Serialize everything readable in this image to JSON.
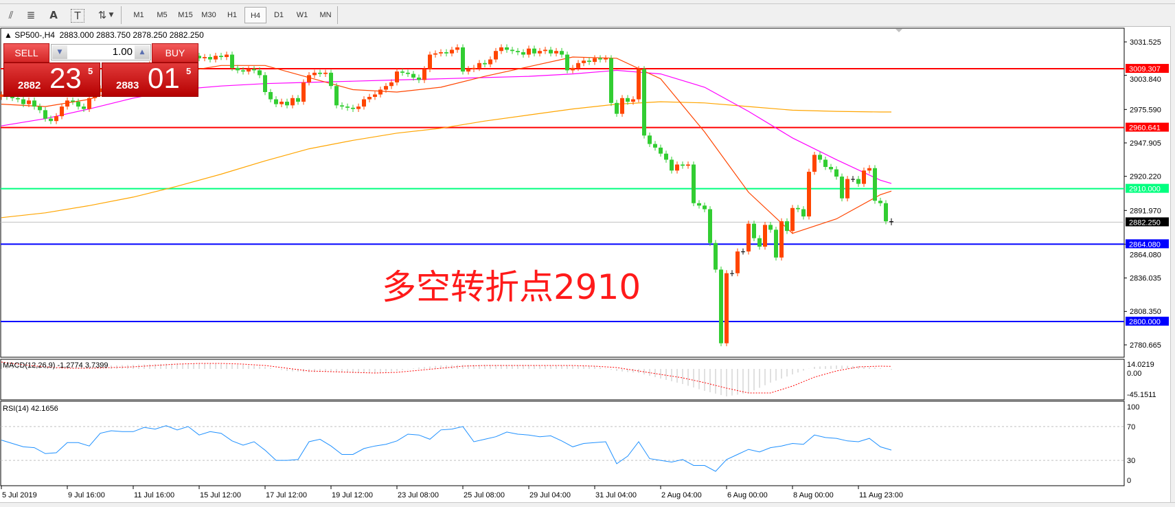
{
  "toolbar": {
    "tools": [
      {
        "name": "elliott-wave-icon",
        "glyph": "⫽"
      },
      {
        "name": "fibonacci-icon",
        "glyph": "≣"
      },
      {
        "name": "text-icon",
        "glyph": "A"
      },
      {
        "name": "text-label-icon",
        "glyph": "T"
      },
      {
        "name": "arrows-icon",
        "glyph": "⇅"
      }
    ],
    "periods": [
      "M1",
      "M5",
      "M15",
      "M30",
      "H1",
      "H4",
      "D1",
      "W1",
      "MN"
    ],
    "active_period": "H4"
  },
  "chart_header": {
    "symbol": "SP500-,H4",
    "ohlc": "2883.000 2883.750 2878.250 2882.250"
  },
  "trade_panel": {
    "sell_label": "SELL",
    "buy_label": "BUY",
    "lot": "1.00",
    "sell_price": {
      "prefix": "2882",
      "big": "23",
      "sup": "5"
    },
    "buy_price": {
      "prefix": "2883",
      "big": "01",
      "sup": "5"
    }
  },
  "annotation": "多空转折点2910",
  "colors": {
    "bull_candle": "#ff4500",
    "bear_candle": "#32cd32",
    "ma_fast": "#ff4500",
    "ma_mid": "#ff00ff",
    "ma_slow": "#ffa500",
    "resistance": "#ff0000",
    "pivot": "#00ff7f",
    "support": "#0000ff",
    "bid_line": "#c0c0c0",
    "rsi": "#1e90ff",
    "macd_hist": "#c0c0c0",
    "macd_signal": "#ff0000"
  },
  "chart_data": [
    {
      "type": "candlestick",
      "symbol": "SP500-",
      "timeframe": "H4",
      "ylim": [
        2773,
        3048
      ],
      "y_ticks": [
        "3031.525",
        "3003.840",
        "2975.590",
        "2947.905",
        "2920.220",
        "2891.970",
        "2864.080",
        "2836.035",
        "2808.350",
        "2780.665"
      ],
      "x_ticks": [
        {
          "label": "5 Jul 2019",
          "bar": 0
        },
        {
          "label": "9 Jul 16:00",
          "bar": 12
        },
        {
          "label": "11 Jul 16:00",
          "bar": 24
        },
        {
          "label": "15 Jul 12:00",
          "bar": 36
        },
        {
          "label": "17 Jul 12:00",
          "bar": 48
        },
        {
          "label": "19 Jul 12:00",
          "bar": 60
        },
        {
          "label": "23 Jul 08:00",
          "bar": 72
        },
        {
          "label": "25 Jul 08:00",
          "bar": 84
        },
        {
          "label": "29 Jul 04:00",
          "bar": 96
        },
        {
          "label": "31 Jul 04:00",
          "bar": 108
        },
        {
          "label": "2 Aug 04:00",
          "bar": 120
        },
        {
          "label": "6 Aug 00:00",
          "bar": 132
        },
        {
          "label": "8 Aug 00:00",
          "bar": 144
        },
        {
          "label": "11 Aug 23:00",
          "bar": 156
        }
      ],
      "first_open": 2986,
      "closes": [
        2988,
        2986,
        2985,
        2984,
        2980,
        2983,
        2978,
        2975,
        2968,
        2966,
        2970,
        2978,
        2983,
        2982,
        2978,
        2976,
        2985,
        2990,
        2993,
        2996,
        3000,
        3003,
        3006,
        3008,
        3010,
        3012,
        3010,
        3013,
        3015,
        3017,
        3015,
        3018,
        3016,
        3019,
        3018,
        3020,
        3018,
        3019,
        3017,
        3020,
        3019,
        3021,
        3010,
        3008,
        3007,
        3009,
        3008,
        3004,
        2990,
        2984,
        2980,
        2982,
        2979,
        2985,
        2982,
        2998,
        3004,
        3006,
        3005,
        3006,
        2995,
        2979,
        2978,
        2977,
        2976,
        2978,
        2984,
        2986,
        2988,
        2992,
        2995,
        2998,
        3007,
        3006,
        3005,
        3002,
        3000,
        3009,
        3021,
        3022,
        3023,
        3022,
        3025,
        3027,
        3007,
        3009,
        3010,
        3014,
        3013,
        3017,
        3024,
        3027,
        3025,
        3024,
        3023,
        3021,
        3026,
        3022,
        3024,
        3025,
        3022,
        3024,
        3021,
        3008,
        3010,
        3014,
        3016,
        3015,
        3018,
        3017,
        3018,
        2981,
        2972,
        2985,
        2982,
        2984,
        3009,
        2954,
        2947,
        2944,
        2939,
        2934,
        2925,
        2930,
        2929,
        2930,
        2898,
        2896,
        2893,
        2865,
        2843,
        2782,
        2840,
        2840,
        2858,
        2858,
        2881,
        2869,
        2862,
        2880,
        2876,
        2853,
        2883,
        2875,
        2894,
        2893,
        2887,
        2924,
        2938,
        2934,
        2928,
        2926,
        2920,
        2902,
        2918,
        2918,
        2914,
        2925,
        2927,
        2900,
        2898,
        2883,
        2882.25
      ],
      "moving_averages": {
        "sample_every_bars": 8,
        "fast": [
          2980,
          2978,
          2984,
          2996,
          3006,
          3012,
          3012,
          3002,
          2992,
          2990,
          2994,
          3003,
          3011,
          3019,
          3018,
          3001,
          2957,
          2907,
          2873,
          2885,
          2905,
          2908
        ],
        "mid": [
          2962,
          2968,
          2976,
          2985,
          2992,
          2995,
          2997,
          2998,
          2999,
          3000,
          3001,
          3002,
          3003,
          3005,
          3008,
          3005,
          2994,
          2974,
          2952,
          2934,
          2917,
          2914.3
        ],
        "slow": [
          2886,
          2890,
          2896,
          2903,
          2912,
          2922,
          2933,
          2943,
          2950,
          2956,
          2960,
          2966,
          2971,
          2976,
          2980,
          2982,
          2981,
          2978,
          2975,
          2974,
          2973.5,
          2973.5
        ]
      },
      "horizontal_lines": [
        {
          "price": "3009.307",
          "kind": "resistance"
        },
        {
          "price": "2960.641",
          "kind": "resistance"
        },
        {
          "price": "2910.000",
          "kind": "pivot"
        },
        {
          "price": "2882.250",
          "kind": "bid_line"
        },
        {
          "price": "2864.080",
          "kind": "support"
        },
        {
          "price": "2800.000",
          "kind": "support"
        }
      ]
    },
    {
      "type": "macd",
      "label": "MACD(12,26,9) -1.2774 3.7399",
      "ylim": [
        -45.1511,
        14.0219
      ],
      "y_ticks": [
        "14.0219",
        "0.00",
        "-45.1511"
      ],
      "sample_every_bars": 4,
      "histogram": [
        8,
        5,
        2,
        1,
        3,
        5,
        6,
        7,
        8,
        8,
        7,
        6,
        3,
        -3,
        -5,
        -4,
        -6,
        -6,
        -3,
        2,
        5,
        6,
        6,
        6,
        6,
        5,
        5,
        4,
        -3,
        -6,
        -14,
        -22,
        -32,
        -40,
        -35,
        -20,
        -8,
        3,
        5,
        4,
        1,
        -1.2774
      ],
      "signal": [
        10,
        6,
        3,
        1,
        1,
        2,
        3,
        5,
        7,
        8,
        8,
        7,
        5,
        1,
        -3,
        -4,
        -5,
        -6,
        -5,
        -2,
        1,
        4,
        5,
        5,
        5,
        5,
        5,
        4,
        2,
        -3,
        -8,
        -13,
        -20,
        -28,
        -35,
        -35,
        -25,
        -12,
        -3,
        3,
        4,
        3.7399
      ]
    },
    {
      "type": "line",
      "label": "RSI(14) 42.1656",
      "ylim": [
        0,
        100
      ],
      "y_ticks": [
        "100",
        "70",
        "30",
        "0"
      ],
      "levels": [
        70,
        30
      ],
      "sample_every_bars": 2,
      "values": [
        54,
        50,
        46,
        45,
        38,
        39,
        51,
        51,
        47,
        62,
        65,
        64,
        64,
        69,
        67,
        71,
        66,
        70,
        60,
        64,
        62,
        53,
        48,
        52,
        42,
        30,
        30,
        31,
        52,
        55,
        47,
        37,
        37,
        44,
        47,
        49,
        53,
        61,
        60,
        55,
        66,
        67,
        70,
        52,
        55,
        58,
        63.5,
        61,
        60,
        58,
        59,
        53,
        46,
        50,
        51,
        52,
        26,
        35,
        52,
        32,
        30,
        28,
        31,
        24,
        24,
        17,
        31,
        37,
        43,
        40,
        45,
        47,
        50,
        49,
        60,
        57,
        56,
        53,
        52,
        56,
        46,
        42.1656
      ]
    }
  ]
}
